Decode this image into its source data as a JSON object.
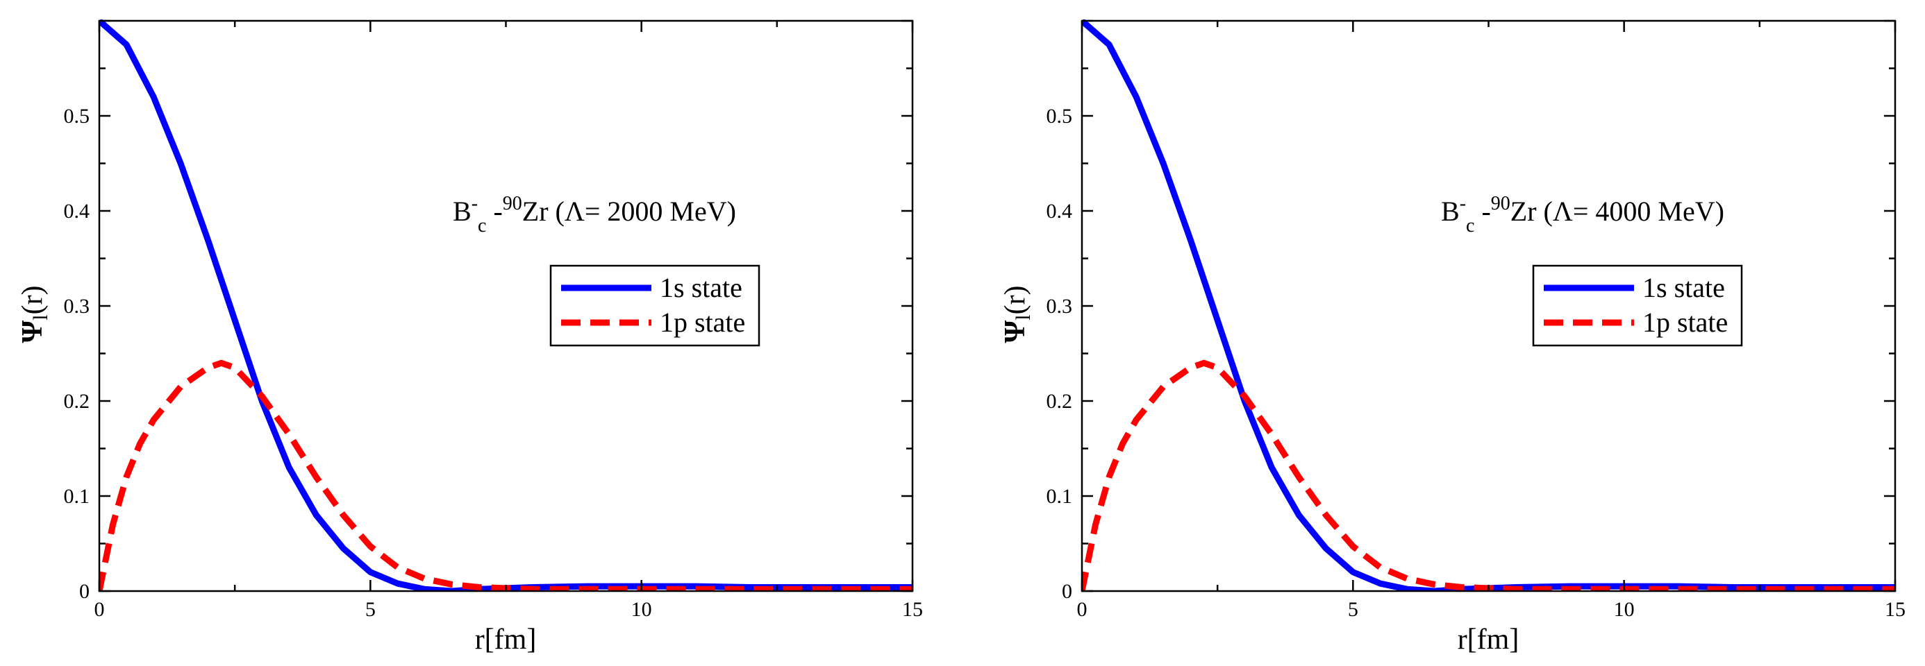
{
  "colors": {
    "series_1s": "#0000ff",
    "series_1p": "#ff0000",
    "axis": "#000000",
    "background": "#ffffff"
  },
  "chart_data": [
    {
      "type": "line",
      "title": "",
      "annotation": {
        "main": "B",
        "sup1": "-",
        "sub1": "c",
        "dash": " -",
        "sup2": "90",
        "rest": "Zr (Λ= 2000 MeV)"
      },
      "xlabel": "r[fm]",
      "ylabel": {
        "main": "Ψ",
        "sub": "l",
        "rest": "(r)"
      },
      "xlim": [
        0,
        15
      ],
      "ylim": [
        0,
        0.6
      ],
      "xticks": [
        0,
        5,
        10,
        15
      ],
      "xtick_labels": [
        "0",
        "5",
        "10",
        "15"
      ],
      "yticks": [
        0,
        0.1,
        0.2,
        0.3,
        0.4,
        0.5
      ],
      "ytick_labels": [
        "0",
        "0.1",
        "0.2",
        "0.3",
        "0.4",
        "0.5"
      ],
      "legend_position": "center-right",
      "series": [
        {
          "name": "1s state",
          "style": "solid",
          "x": [
            0,
            0.5,
            1,
            1.5,
            2,
            2.5,
            3,
            3.5,
            4,
            4.5,
            5,
            5.5,
            6,
            6.5,
            7,
            8,
            9,
            10,
            11,
            12,
            13,
            14,
            15
          ],
          "y": [
            0.6,
            0.575,
            0.52,
            0.45,
            0.37,
            0.285,
            0.2,
            0.13,
            0.08,
            0.045,
            0.02,
            0.008,
            0.002,
            0.0,
            0.002,
            0.004,
            0.005,
            0.005,
            0.005,
            0.004,
            0.004,
            0.004,
            0.004
          ]
        },
        {
          "name": "1p state",
          "style": "dashed",
          "x": [
            0,
            0.25,
            0.5,
            0.75,
            1,
            1.5,
            2,
            2.25,
            2.5,
            3,
            3.5,
            4,
            4.5,
            5,
            5.5,
            6,
            6.5,
            7,
            7.5,
            8,
            9,
            10,
            11,
            12,
            13,
            14,
            15
          ],
          "y": [
            0.0,
            0.07,
            0.12,
            0.155,
            0.18,
            0.215,
            0.235,
            0.24,
            0.235,
            0.205,
            0.165,
            0.12,
            0.08,
            0.047,
            0.025,
            0.013,
            0.007,
            0.004,
            0.003,
            0.002,
            0.002,
            0.002,
            0.002,
            0.002,
            0.002,
            0.002,
            0.002
          ]
        }
      ]
    },
    {
      "type": "line",
      "title": "",
      "annotation": {
        "main": "B",
        "sup1": "-",
        "sub1": "c",
        "dash": " -",
        "sup2": "90",
        "rest": "Zr (Λ= 4000 MeV)"
      },
      "xlabel": "r[fm]",
      "ylabel": {
        "main": "Ψ",
        "sub": "l",
        "rest": "(r)"
      },
      "xlim": [
        0,
        15
      ],
      "ylim": [
        0,
        0.6
      ],
      "xticks": [
        0,
        5,
        10,
        15
      ],
      "xtick_labels": [
        "0",
        "5",
        "10",
        "15"
      ],
      "yticks": [
        0,
        0.1,
        0.2,
        0.3,
        0.4,
        0.5
      ],
      "ytick_labels": [
        "0",
        "0.1",
        "0.2",
        "0.3",
        "0.4",
        "0.5"
      ],
      "legend_position": "center-right",
      "series": [
        {
          "name": "1s state",
          "style": "solid",
          "x": [
            0,
            0.5,
            1,
            1.5,
            2,
            2.5,
            3,
            3.5,
            4,
            4.5,
            5,
            5.5,
            6,
            6.5,
            7,
            8,
            9,
            10,
            11,
            12,
            13,
            14,
            15
          ],
          "y": [
            0.6,
            0.575,
            0.52,
            0.45,
            0.37,
            0.285,
            0.2,
            0.13,
            0.08,
            0.045,
            0.02,
            0.008,
            0.002,
            0.0,
            0.002,
            0.004,
            0.005,
            0.005,
            0.005,
            0.004,
            0.004,
            0.004,
            0.004
          ]
        },
        {
          "name": "1p state",
          "style": "dashed",
          "x": [
            0,
            0.25,
            0.5,
            0.75,
            1,
            1.5,
            2,
            2.25,
            2.5,
            3,
            3.5,
            4,
            4.5,
            5,
            5.5,
            6,
            6.5,
            7,
            7.5,
            8,
            9,
            10,
            11,
            12,
            13,
            14,
            15
          ],
          "y": [
            0.0,
            0.07,
            0.12,
            0.155,
            0.18,
            0.215,
            0.235,
            0.24,
            0.235,
            0.205,
            0.165,
            0.12,
            0.08,
            0.047,
            0.025,
            0.013,
            0.007,
            0.004,
            0.003,
            0.002,
            0.002,
            0.002,
            0.002,
            0.002,
            0.002,
            0.002,
            0.002
          ]
        }
      ]
    }
  ]
}
